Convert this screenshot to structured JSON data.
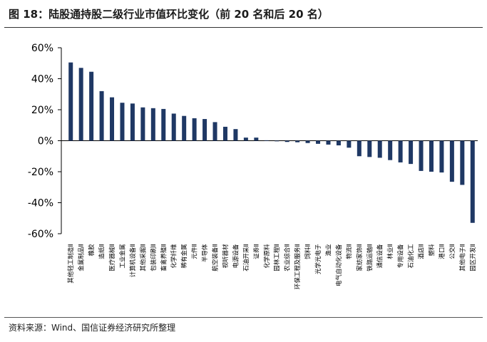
{
  "title": "图 18：陆股通持股二级行业市值环比变化（前 20 名和后 20 名）",
  "source": "资料来源：Wind、国信证券经济研究所整理",
  "chart_data": {
    "type": "bar",
    "ylim": [
      -60,
      60
    ],
    "yticks": [
      "60%",
      "40%",
      "20%",
      "0%",
      "-20%",
      "-40%",
      "-60%"
    ],
    "ytick_values": [
      60,
      40,
      20,
      0,
      -20,
      -40,
      -60
    ],
    "grid": false,
    "bar_color": "#1f3864",
    "categories": [
      "其他轻工制造Ⅱ",
      "金属制品Ⅱ",
      "橡胶",
      "造纸Ⅱ",
      "医疗器械Ⅱ",
      "工业金属",
      "计算机设备Ⅱ",
      "其他采掘Ⅱ",
      "包装印刷Ⅱ",
      "畜禽养殖Ⅱ",
      "化学纤维",
      "稀有金属",
      "元件Ⅱ",
      "半导体",
      "航空装备Ⅱ",
      "视听器材",
      "电源设备",
      "石油开采Ⅱ",
      "证券Ⅱ",
      "化学原料",
      "园林工程Ⅱ",
      "农业综合Ⅱ",
      "环保工程及服务Ⅱ",
      "饲料Ⅱ",
      "光学光电子",
      "渔业",
      "电气自动化设备",
      "物流Ⅱ",
      "家纺家饰Ⅱ",
      "铁路运输Ⅱ",
      "通信设备",
      "林业Ⅱ",
      "专用设备",
      "石油化工",
      "酒店Ⅱ",
      "塑料",
      "港口Ⅱ",
      "公交Ⅱ",
      "其他电子Ⅱ",
      "园区开发Ⅱ"
    ],
    "values": [
      50.5,
      47,
      44.5,
      32,
      28,
      24.5,
      24,
      21.5,
      21,
      20.5,
      17.5,
      16,
      14.5,
      14,
      12,
      9,
      7.5,
      2,
      2,
      0.3,
      -0.3,
      -0.8,
      -1,
      -1.5,
      -2,
      -2.5,
      -3,
      -4.5,
      -10,
      -10.5,
      -11,
      -12.5,
      -14,
      -15,
      -19.5,
      -20,
      -20.5,
      -26.5,
      -28.5,
      -53
    ]
  }
}
